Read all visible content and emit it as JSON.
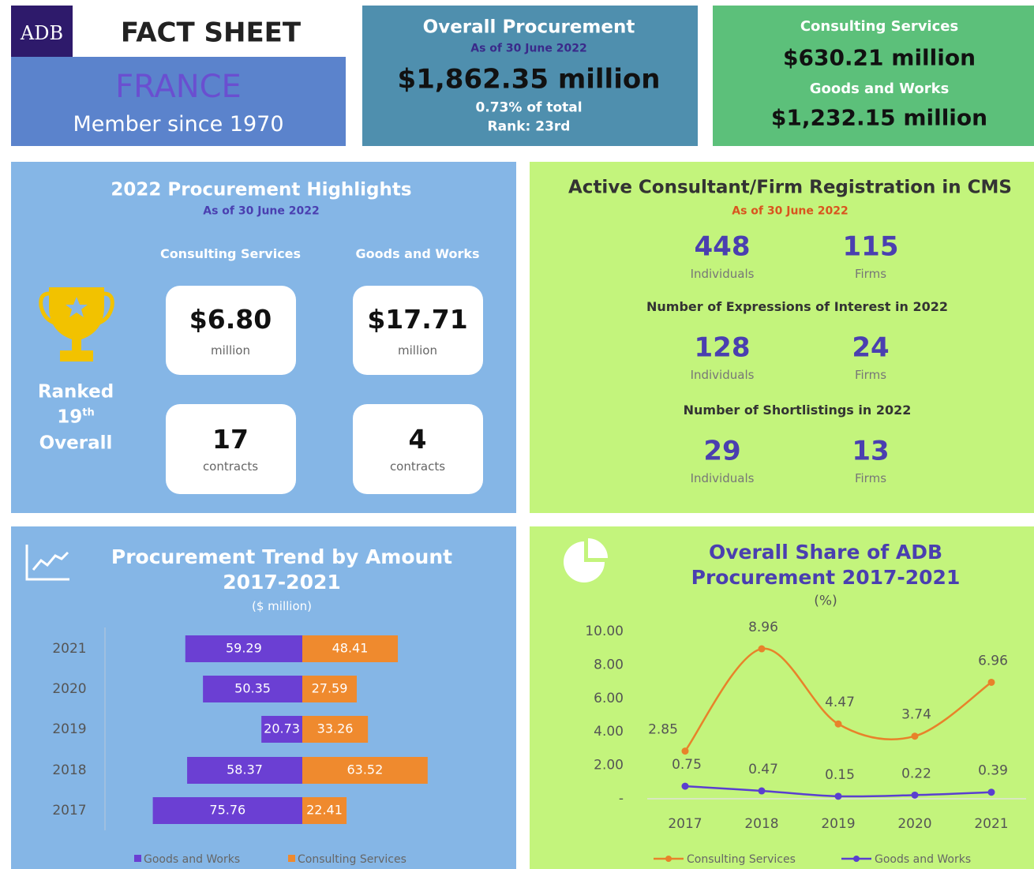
{
  "header": {
    "logo": "ADB",
    "title": "FACT SHEET",
    "country": "FRANCE",
    "member": "Member since 1970"
  },
  "overall": {
    "title": "Overall Procurement",
    "date": "As of 30 June 2022",
    "amount": "$1,862.35 million",
    "share": "0.73% of total",
    "rank": "Rank: 23rd"
  },
  "split": {
    "cs_label": "Consulting Services",
    "cs_amount": "$630.21 million",
    "gw_label": "Goods and Works",
    "gw_amount": "$1,232.15 million"
  },
  "highlights": {
    "title": "2022 Procurement Highlights",
    "date": "As of 30 June 2022",
    "ranked": "Ranked",
    "rank_num": "19",
    "rank_sup": "th",
    "overall": "Overall",
    "columns": [
      {
        "label": "Consulting Services",
        "amount": "$6.80",
        "amount_unit": "million",
        "contracts": 17,
        "contracts_unit": "contracts"
      },
      {
        "label": "Goods and Works",
        "amount": "$17.71",
        "amount_unit": "million",
        "contracts": 4,
        "contracts_unit": "contracts"
      }
    ]
  },
  "registration": {
    "title": "Active Consultant/Firm Registration in CMS",
    "date": "As of 30 June 2022",
    "rows": [
      {
        "individuals": 448,
        "individuals_label": "Individuals",
        "firms": 115,
        "firms_label": "Firms"
      },
      {
        "heading": "Number of Expressions of Interest in 2022",
        "individuals": 128,
        "individuals_label": "Individuals",
        "firms": 24,
        "firms_label": "Firms"
      },
      {
        "heading": "Number of Shortlistings in 2022",
        "individuals": 29,
        "individuals_label": "Individuals",
        "firms": 13,
        "firms_label": "Firms"
      }
    ]
  },
  "chart_data": [
    {
      "type": "bar",
      "title": "Procurement Trend by Amount 2017-2021",
      "subtitle": "($ million)",
      "categories": [
        "2021",
        "2020",
        "2019",
        "2018",
        "2017"
      ],
      "series": [
        {
          "name": "Goods and Works",
          "color": "#6b3fd3",
          "values": [
            59.29,
            50.35,
            20.73,
            58.37,
            75.76
          ]
        },
        {
          "name": "Consulting Services",
          "color": "#ef8a2e",
          "values": [
            48.41,
            27.59,
            33.26,
            63.52,
            22.41
          ]
        }
      ],
      "legend": "bottom"
    },
    {
      "type": "line",
      "title": "Overall Share of ADB Procurement 2017-2021",
      "subtitle": "(%)",
      "categories": [
        "2017",
        "2018",
        "2019",
        "2020",
        "2021"
      ],
      "series": [
        {
          "name": "Consulting Services",
          "color": "#e8822a",
          "values": [
            2.85,
            8.96,
            4.47,
            3.74,
            6.96
          ]
        },
        {
          "name": "Goods and Works",
          "color": "#5a3fd0",
          "values": [
            0.75,
            0.47,
            0.15,
            0.22,
            0.39
          ]
        }
      ],
      "ylim": [
        0,
        10
      ],
      "yticks": [
        {
          "value": 0,
          "label": "-"
        },
        {
          "value": 2,
          "label": "2.00"
        },
        {
          "value": 4,
          "label": "4.00"
        },
        {
          "value": 6,
          "label": "6.00"
        },
        {
          "value": 8,
          "label": "8.00"
        },
        {
          "value": 10,
          "label": "10.00"
        }
      ],
      "legend": "bottom"
    }
  ]
}
